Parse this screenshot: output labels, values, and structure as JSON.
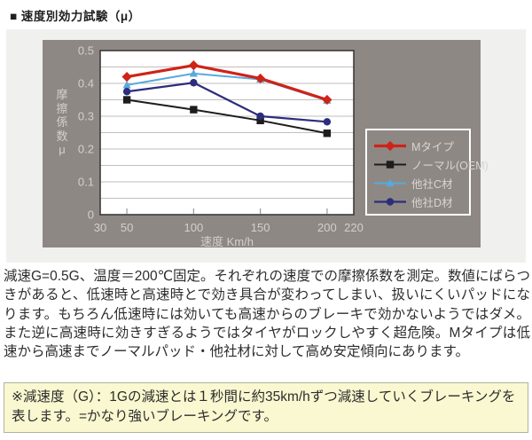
{
  "title": "■ 速度別効力試験（μ）",
  "chart_data": {
    "type": "line",
    "x": [
      50,
      100,
      150,
      200
    ],
    "x_axis": {
      "label": "速度 Km/h",
      "ticks": [
        30,
        50,
        100,
        150,
        200,
        220
      ],
      "range": [
        30,
        220
      ]
    },
    "y_axis": {
      "label": "摩擦係数μ",
      "ticks": [
        0,
        0.1,
        0.2,
        0.3,
        0.4,
        0.5
      ],
      "range": [
        0,
        0.5
      ],
      "grid_step": 0.05
    },
    "series": [
      {
        "name": "Mタイプ",
        "color": "#cf2318",
        "marker": "diamond",
        "line_width": 3.2,
        "values": [
          0.42,
          0.455,
          0.415,
          0.35
        ]
      },
      {
        "name": "ノーマル(OEM)",
        "color": "#1d1d1d",
        "marker": "square",
        "line_width": 2,
        "values": [
          0.35,
          0.32,
          0.287,
          0.248
        ]
      },
      {
        "name": "他社C材",
        "color": "#58aadc",
        "marker": "triangle",
        "line_width": 2,
        "values": [
          0.395,
          0.43,
          0.412,
          0.348
        ]
      },
      {
        "name": "他社D材",
        "color": "#2c2d7c",
        "marker": "circle",
        "line_width": 2.2,
        "values": [
          0.375,
          0.402,
          0.3,
          0.283
        ]
      }
    ],
    "draw_order": [
      1,
      2,
      3,
      0
    ],
    "legend_position": "right",
    "grid": true,
    "colors": {
      "panel_bg": "#8e8884",
      "plot_bg": "#ffffff",
      "plot_border": "#3d3b39",
      "grid_line": "#c2bfbc",
      "tick_mark": "#9a9794",
      "axis_text": "#d3cfcc",
      "legend_border": "#ffffff",
      "legend_text": "#d8d5d2"
    }
  },
  "description": "減速G=0.5G、温度＝200℃固定。それぞれの速度での摩擦係数を測定。数値にばらつきがあると、低速時と高速時とで効き具合が変わってしまい、扱いにくいパッドになります。もちろん低速時には効いても高速からのブレーキで効かないようではダメ。また逆に高速時に効きすぎるようではタイヤがロックしやすく超危険。Mタイプは低速から高速までノーマルパッド・他社材に対して高め安定傾向にあります。",
  "note": "※減速度（G）：1Gの減速とは１秒間に約35km/hずつ減速していくブレーキングを表します。=かなり強いブレーキングです。"
}
